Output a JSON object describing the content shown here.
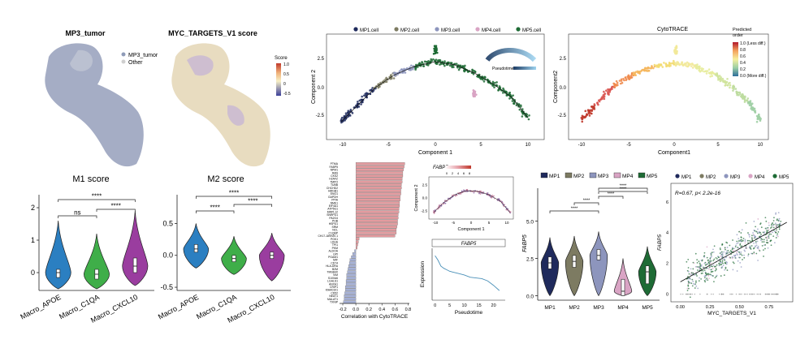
{
  "colors": {
    "mp1": "#1f2a5c",
    "mp2": "#7d7b62",
    "mp3": "#8d95bd",
    "mp4": "#d9a4c4",
    "mp5": "#1e6b35",
    "tumor": "#8f9bb8",
    "other": "#cfcfcf",
    "m_apoe": "#2b7fc1",
    "m_c1qa": "#3fae49",
    "m_cxcl10": "#9a3d9f",
    "bar_pos": "#e39b9f",
    "bar_neg": "#a6b1d6"
  },
  "umap1": {
    "title": "MP3_tumor",
    "legend": [
      "MP3_tumor",
      "Other"
    ]
  },
  "umap2": {
    "title": "MYC_TARGETS_V1 score",
    "legend_title": "Score",
    "legend_ticks": [
      "1.0",
      "0.5",
      "0",
      "-0.5"
    ]
  },
  "traj1": {
    "legend": [
      "MP1.cell",
      "MP2.cell",
      "MP3.cell",
      "MP4.cell",
      "MP5.cell"
    ],
    "inset_label": "Pseudotime",
    "inset_ticks": [
      "0",
      "5",
      "10",
      "15",
      "20"
    ],
    "xlabel": "Component 1",
    "ylabel": "Component 2",
    "xticks": [
      "-10",
      "-5",
      "0",
      "5",
      "10"
    ],
    "yticks": [
      "2.5",
      "0.0",
      "-2.5"
    ]
  },
  "traj2": {
    "title": "CytoTRACE",
    "legend_title": "Predicted\norder",
    "legend_ticks": [
      "1.0 (Less diff.)",
      "0.8",
      "0.6",
      "0.4",
      "0.2",
      "0.0 (More diff.)"
    ],
    "xlabel": "Component1",
    "ylabel": "Component2",
    "xticks": [
      "-10",
      "-5",
      "0",
      "5",
      "10"
    ],
    "yticks": [
      "2.5",
      "0.0",
      "-2.5"
    ]
  },
  "fabp5_traj": {
    "title": "FABP5",
    "scale_ticks": [
      "0",
      "2",
      "4",
      "6",
      "8"
    ],
    "xlabel": "Component 1",
    "ylabel": "Component 2",
    "xticks": [
      "-10",
      "-5",
      "0",
      "5",
      "10"
    ],
    "yticks": [
      "2.5",
      "0.0",
      "-2.5"
    ]
  },
  "chart_data": [
    {
      "id": "m1",
      "type": "violin",
      "title": "M1 score",
      "categories": [
        "Macro_APOE",
        "Macro_C1QA",
        "Macro_CXCL10"
      ],
      "series": [
        {
          "median": 0.0,
          "q1": -0.15,
          "q3": 0.1,
          "min": -0.5,
          "max": 1.6
        },
        {
          "median": -0.05,
          "q1": -0.2,
          "q3": 0.1,
          "min": -0.5,
          "max": 1.2
        },
        {
          "median": 0.2,
          "q1": 0.0,
          "q3": 0.45,
          "min": -0.4,
          "max": 1.9
        }
      ],
      "yticks": [
        "0",
        "1",
        "2"
      ],
      "ylim": [
        -0.55,
        2.4
      ],
      "brackets": [
        {
          "from": 0,
          "to": 1,
          "label": "ns"
        },
        {
          "from": 1,
          "to": 2,
          "label": "****"
        },
        {
          "from": 0,
          "to": 2,
          "label": "****"
        }
      ]
    },
    {
      "id": "m2",
      "type": "violin",
      "title": "M2 score",
      "categories": [
        "Macro_APOE",
        "Macro_C1QA",
        "Macro_CXCL10"
      ],
      "series": [
        {
          "median": 0.1,
          "q1": 0.05,
          "q3": 0.17,
          "min": -0.2,
          "max": 0.5
        },
        {
          "median": -0.05,
          "q1": -0.1,
          "q3": 0.0,
          "min": -0.3,
          "max": 0.3
        },
        {
          "median": 0.0,
          "q1": -0.05,
          "q3": 0.05,
          "min": -0.4,
          "max": 0.35
        }
      ],
      "yticks": [
        "-0.5",
        "0.0",
        "0.5"
      ],
      "ylim": [
        -0.55,
        0.95
      ],
      "brackets": [
        {
          "from": 0,
          "to": 1,
          "label": "****"
        },
        {
          "from": 1,
          "to": 2,
          "label": "****"
        },
        {
          "from": 0,
          "to": 2,
          "label": "****"
        }
      ]
    },
    {
      "id": "corr",
      "type": "bar",
      "orientation": "horizontal",
      "xlabel": "Correlation with CytoTRACE",
      "xticks": [
        "-0.2",
        "0.0",
        "0.2",
        "0.4",
        "0.6",
        "0.8"
      ],
      "xlim": [
        -0.25,
        0.82
      ],
      "categories": [
        "PTMA",
        "FABP5",
        "NPM1",
        "RAN",
        "CKS2",
        "H2AFZ",
        "TMPO",
        "TUBB",
        "CHCHD2",
        "HMGB1",
        "ENO1",
        "GAPDH",
        "PPIA",
        "NME1",
        "EIF4A1",
        "ATP5G1",
        "MRPL12",
        "SNRPD1",
        "PA2G4",
        "PHB",
        "HSPD1",
        "SRM",
        "NCL",
        "C1QBP",
        "CH17-189H20.1",
        "PGK1",
        "LDHA",
        "TPI1",
        "PKM",
        "ALDOA",
        "GPI",
        "PGAM1",
        "MIF",
        "CD74",
        "HLA-DRA",
        "B2M",
        "TMSB4X",
        "VIM",
        "S100A6",
        "LGALS1",
        "ANXA1",
        "CRIP1",
        "KIAA0101",
        "CD52",
        "NEAT1",
        "MALAT1",
        "TXNIP"
      ],
      "values": [
        0.75,
        0.74,
        0.73,
        0.72,
        0.72,
        0.71,
        0.71,
        0.7,
        0.7,
        0.69,
        0.69,
        0.68,
        0.68,
        0.67,
        0.67,
        0.66,
        0.66,
        0.65,
        0.65,
        0.64,
        0.64,
        0.63,
        0.62,
        0.62,
        0.6,
        0.05,
        0.04,
        0.03,
        0.02,
        -0.02,
        -0.05,
        -0.07,
        -0.09,
        -0.1,
        -0.11,
        -0.12,
        -0.13,
        -0.14,
        -0.14,
        -0.15,
        -0.15,
        -0.16,
        -0.16,
        -0.17,
        -0.18,
        -0.18,
        -0.19
      ]
    },
    {
      "id": "expr",
      "type": "line",
      "title": "FABP5",
      "xlabel": "Pseudotime",
      "ylabel": "Expression",
      "xticks": [
        "0",
        "5",
        "10",
        "15",
        "20"
      ],
      "x": [
        0,
        1,
        2,
        3,
        4,
        5,
        6,
        8,
        10,
        12,
        14,
        16,
        18,
        20,
        22
      ],
      "y": [
        6.0,
        5.4,
        4.6,
        4.3,
        4.1,
        3.9,
        3.8,
        3.6,
        3.4,
        3.1,
        3.0,
        2.9,
        2.6,
        2.0,
        1.3
      ],
      "xlim": [
        -1,
        24
      ],
      "ylim": [
        0,
        7
      ]
    },
    {
      "id": "mpviolin",
      "type": "violin",
      "ylabel": "FABP5",
      "legend": [
        "MP1",
        "MP2",
        "MP3",
        "MP4",
        "MP5"
      ],
      "categories": [
        "MP1",
        "MP2",
        "MP3",
        "MP4",
        "MP5"
      ],
      "yticks": [
        "0.0",
        "2.5",
        "5.0"
      ],
      "ylim": [
        -0.3,
        7.2
      ],
      "series": [
        {
          "median": 2.2,
          "q1": 1.8,
          "q3": 2.6,
          "min": 0.0,
          "max": 3.9
        },
        {
          "median": 2.3,
          "q1": 1.9,
          "q3": 2.7,
          "min": 0.0,
          "max": 4.0
        },
        {
          "median": 2.7,
          "q1": 2.4,
          "q3": 3.1,
          "min": 0.0,
          "max": 4.3
        },
        {
          "median": 0.3,
          "q1": 0.0,
          "q3": 1.1,
          "min": 0.0,
          "max": 2.5
        },
        {
          "median": 1.6,
          "q1": 0.8,
          "q3": 2.0,
          "min": 0.0,
          "max": 3.3
        }
      ],
      "brackets": [
        {
          "from": 0,
          "to": 2,
          "label": "****"
        },
        {
          "from": 1,
          "to": 2,
          "label": "****"
        },
        {
          "from": 2,
          "to": 3,
          "label": "****"
        },
        {
          "from": 2,
          "to": 4,
          "label": "****"
        },
        {
          "from": 2,
          "to": 4,
          "label": "****"
        }
      ]
    },
    {
      "id": "scatter",
      "type": "scatter",
      "legend": [
        "MP1",
        "MP2",
        "MP3",
        "MP4",
        "MP5"
      ],
      "annotation": "R=0.67, p< 2.2e-16",
      "xlabel": "MYC_TARGETS_V1",
      "ylabel": "FABP5",
      "xticks": [
        "0.00",
        "0.25",
        "0.50",
        "0.75"
      ],
      "yticks": [
        "0",
        "2",
        "4",
        "6"
      ],
      "xlim": [
        -0.08,
        0.95
      ],
      "ylim": [
        -0.5,
        7.2
      ],
      "fit": {
        "slope": 4.3,
        "intercept": 0.8
      }
    }
  ]
}
